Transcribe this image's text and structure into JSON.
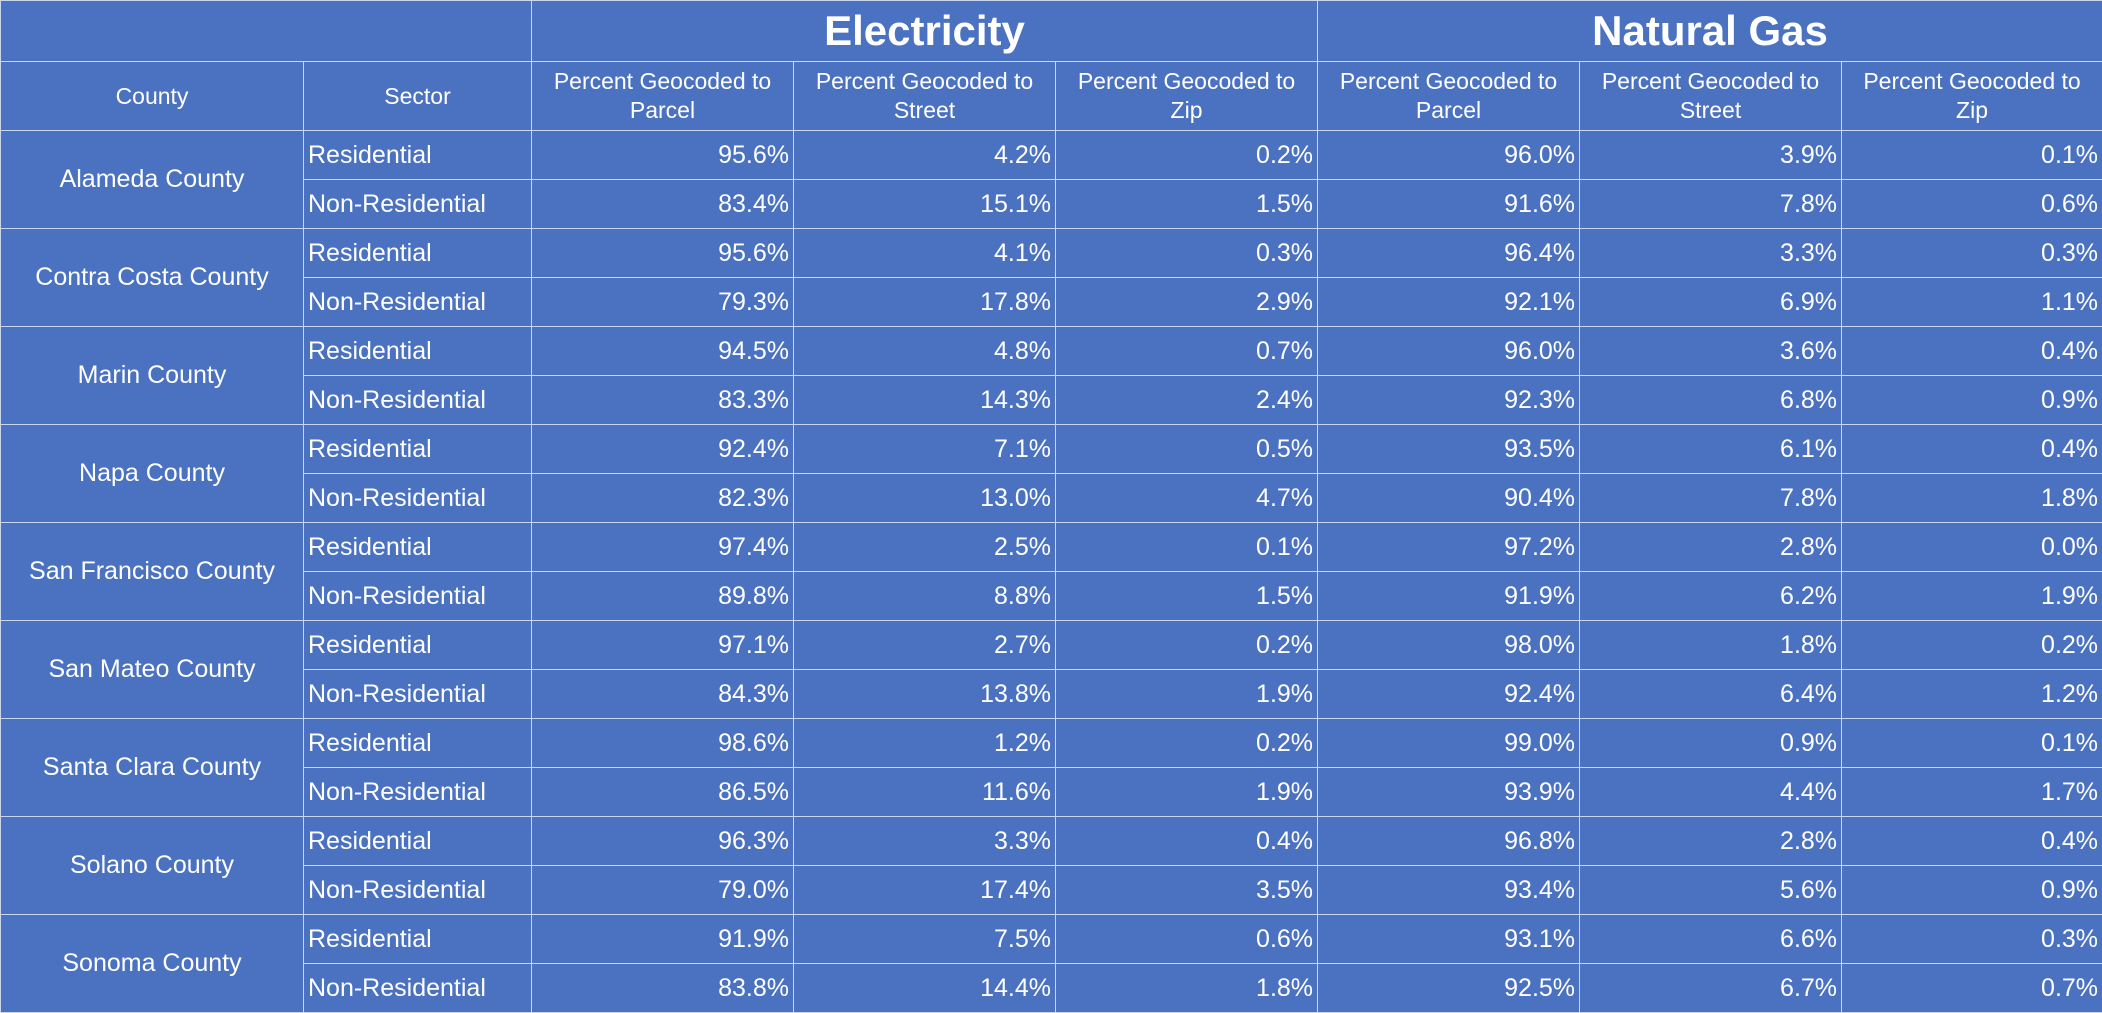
{
  "groups": {
    "electricity": "Electricity",
    "natural_gas": "Natural Gas"
  },
  "headers": {
    "county": "County",
    "sector": "Sector",
    "parcel_l1": "Percent Geocoded to",
    "parcel_l2": "Parcel",
    "street_l1": "Percent Geocoded to",
    "street_l2": "Street",
    "zip_l1": "Percent Geocoded to",
    "zip_l2": "Zip"
  },
  "rows": [
    {
      "county": "Alameda County",
      "sector": "Residential",
      "e_parcel": "95.6%",
      "e_street": "4.2%",
      "e_zip": "0.2%",
      "g_parcel": "96.0%",
      "g_street": "3.9%",
      "g_zip": "0.1%"
    },
    {
      "county": "Alameda County",
      "sector": "Non-Residential",
      "e_parcel": "83.4%",
      "e_street": "15.1%",
      "e_zip": "1.5%",
      "g_parcel": "91.6%",
      "g_street": "7.8%",
      "g_zip": "0.6%"
    },
    {
      "county": "Contra Costa County",
      "sector": "Residential",
      "e_parcel": "95.6%",
      "e_street": "4.1%",
      "e_zip": "0.3%",
      "g_parcel": "96.4%",
      "g_street": "3.3%",
      "g_zip": "0.3%"
    },
    {
      "county": "Contra Costa County",
      "sector": "Non-Residential",
      "e_parcel": "79.3%",
      "e_street": "17.8%",
      "e_zip": "2.9%",
      "g_parcel": "92.1%",
      "g_street": "6.9%",
      "g_zip": "1.1%"
    },
    {
      "county": "Marin County",
      "sector": "Residential",
      "e_parcel": "94.5%",
      "e_street": "4.8%",
      "e_zip": "0.7%",
      "g_parcel": "96.0%",
      "g_street": "3.6%",
      "g_zip": "0.4%"
    },
    {
      "county": "Marin County",
      "sector": "Non-Residential",
      "e_parcel": "83.3%",
      "e_street": "14.3%",
      "e_zip": "2.4%",
      "g_parcel": "92.3%",
      "g_street": "6.8%",
      "g_zip": "0.9%"
    },
    {
      "county": "Napa County",
      "sector": "Residential",
      "e_parcel": "92.4%",
      "e_street": "7.1%",
      "e_zip": "0.5%",
      "g_parcel": "93.5%",
      "g_street": "6.1%",
      "g_zip": "0.4%"
    },
    {
      "county": "Napa County",
      "sector": "Non-Residential",
      "e_parcel": "82.3%",
      "e_street": "13.0%",
      "e_zip": "4.7%",
      "g_parcel": "90.4%",
      "g_street": "7.8%",
      "g_zip": "1.8%"
    },
    {
      "county": "San Francisco County",
      "sector": "Residential",
      "e_parcel": "97.4%",
      "e_street": "2.5%",
      "e_zip": "0.1%",
      "g_parcel": "97.2%",
      "g_street": "2.8%",
      "g_zip": "0.0%"
    },
    {
      "county": "San Francisco County",
      "sector": "Non-Residential",
      "e_parcel": "89.8%",
      "e_street": "8.8%",
      "e_zip": "1.5%",
      "g_parcel": "91.9%",
      "g_street": "6.2%",
      "g_zip": "1.9%"
    },
    {
      "county": "San Mateo County",
      "sector": "Residential",
      "e_parcel": "97.1%",
      "e_street": "2.7%",
      "e_zip": "0.2%",
      "g_parcel": "98.0%",
      "g_street": "1.8%",
      "g_zip": "0.2%"
    },
    {
      "county": "San Mateo County",
      "sector": "Non-Residential",
      "e_parcel": "84.3%",
      "e_street": "13.8%",
      "e_zip": "1.9%",
      "g_parcel": "92.4%",
      "g_street": "6.4%",
      "g_zip": "1.2%"
    },
    {
      "county": "Santa Clara County",
      "sector": "Residential",
      "e_parcel": "98.6%",
      "e_street": "1.2%",
      "e_zip": "0.2%",
      "g_parcel": "99.0%",
      "g_street": "0.9%",
      "g_zip": "0.1%"
    },
    {
      "county": "Santa Clara County",
      "sector": "Non-Residential",
      "e_parcel": "86.5%",
      "e_street": "11.6%",
      "e_zip": "1.9%",
      "g_parcel": "93.9%",
      "g_street": "4.4%",
      "g_zip": "1.7%"
    },
    {
      "county": "Solano County",
      "sector": "Residential",
      "e_parcel": "96.3%",
      "e_street": "3.3%",
      "e_zip": "0.4%",
      "g_parcel": "96.8%",
      "g_street": "2.8%",
      "g_zip": "0.4%"
    },
    {
      "county": "Solano County",
      "sector": "Non-Residential",
      "e_parcel": "79.0%",
      "e_street": "17.4%",
      "e_zip": "3.5%",
      "g_parcel": "93.4%",
      "g_street": "5.6%",
      "g_zip": "0.9%"
    },
    {
      "county": "Sonoma County",
      "sector": "Residential",
      "e_parcel": "91.9%",
      "e_street": "7.5%",
      "e_zip": "0.6%",
      "g_parcel": "93.1%",
      "g_street": "6.6%",
      "g_zip": "0.3%"
    },
    {
      "county": "Sonoma County",
      "sector": "Non-Residential",
      "e_parcel": "83.8%",
      "e_street": "14.4%",
      "e_zip": "1.8%",
      "g_parcel": "92.5%",
      "g_street": "6.7%",
      "g_zip": "0.7%"
    }
  ],
  "colors": {
    "cell_background": "#4a72c0",
    "grid_line": "#c9d6ee",
    "text": "#ffffff"
  }
}
